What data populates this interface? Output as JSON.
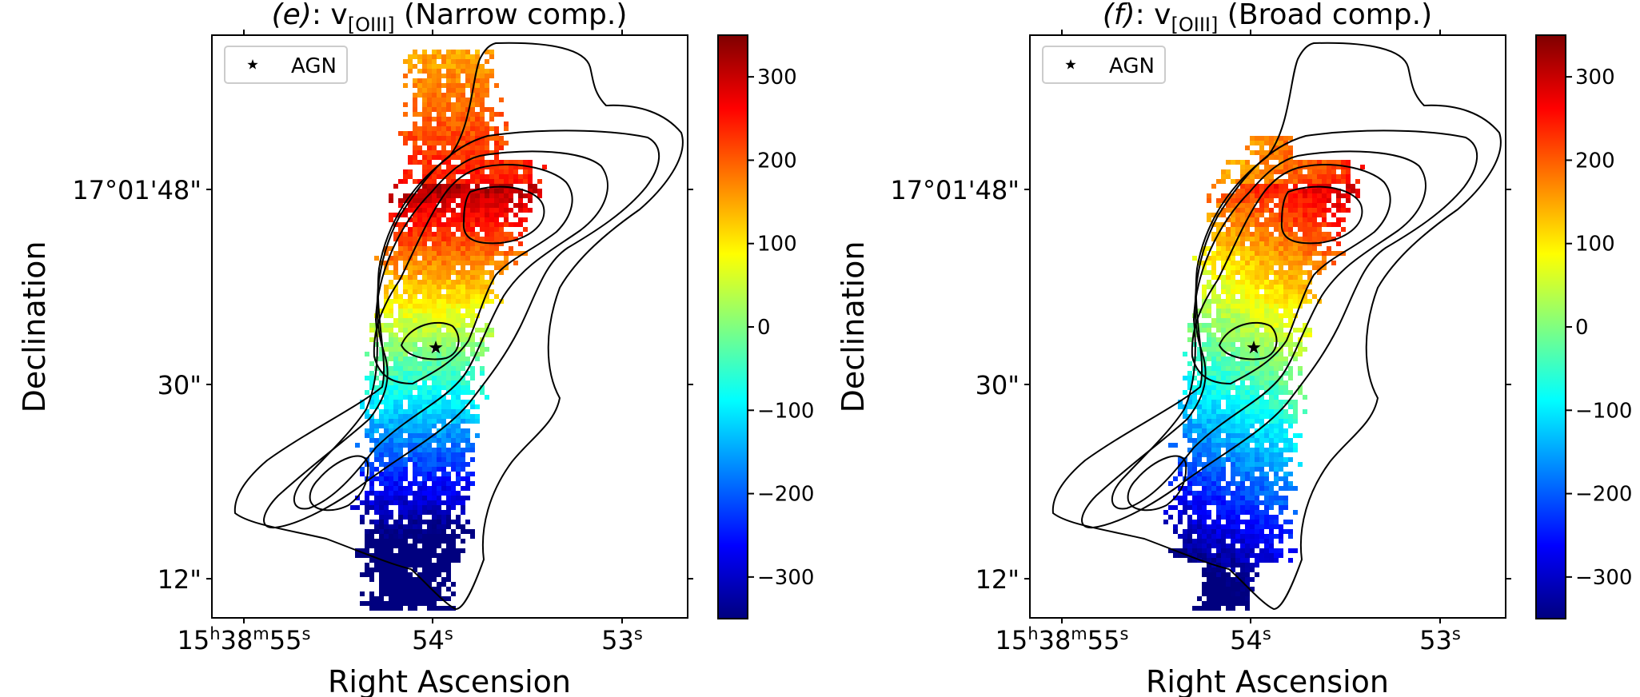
{
  "figure": {
    "colorbar_ticks": [
      -300,
      -200,
      -100,
      0,
      100,
      200,
      300
    ],
    "colorbar_range": [
      -350,
      350
    ],
    "colormap": [
      "#00007f",
      "#0000ff",
      "#0080ff",
      "#00ffff",
      "#80ff80",
      "#ffff00",
      "#ff8000",
      "#ff0000",
      "#7f0000"
    ],
    "contour_color": "#000000",
    "agn_marker_color": "#000000"
  },
  "chart_data": [
    {
      "type": "heatmap",
      "title_prefix": "(e)",
      "title_main": ": v",
      "title_sub": "[OIII]",
      "title_suffix": " (Narrow comp.)",
      "xlabel": "Right Ascension",
      "ylabel": "Declination",
      "xticks": [
        {
          "value": "15:38:55",
          "h": "15",
          "m": "38",
          "s": "55"
        },
        {
          "value": "15:38:54",
          "s": "54"
        },
        {
          "value": "15:38:53",
          "s": "53"
        }
      ],
      "yticks": [
        "17°01'48\"",
        "30\"",
        "12\""
      ],
      "legend": "AGN",
      "legend_position": "top-left",
      "colorbar_ticks": [
        "300",
        "200",
        "100",
        "0",
        "−100",
        "−200",
        "−300"
      ]
    },
    {
      "type": "heatmap",
      "title_prefix": "(f)",
      "title_main": ": v",
      "title_sub": "[OIII]",
      "title_suffix": " (Broad comp.)",
      "xlabel": "Right Ascension",
      "ylabel": "Declination",
      "xticks": [
        {
          "value": "15:38:55",
          "h": "15",
          "m": "38",
          "s": "55"
        },
        {
          "value": "15:38:54",
          "s": "54"
        },
        {
          "value": "15:38:53",
          "s": "53"
        }
      ],
      "yticks": [
        "17°01'48\"",
        "30\"",
        "12\""
      ],
      "legend": "AGN",
      "legend_position": "top-left",
      "colorbar_ticks": [
        "300",
        "200",
        "100",
        "0",
        "−100",
        "−200",
        "−300"
      ]
    }
  ]
}
